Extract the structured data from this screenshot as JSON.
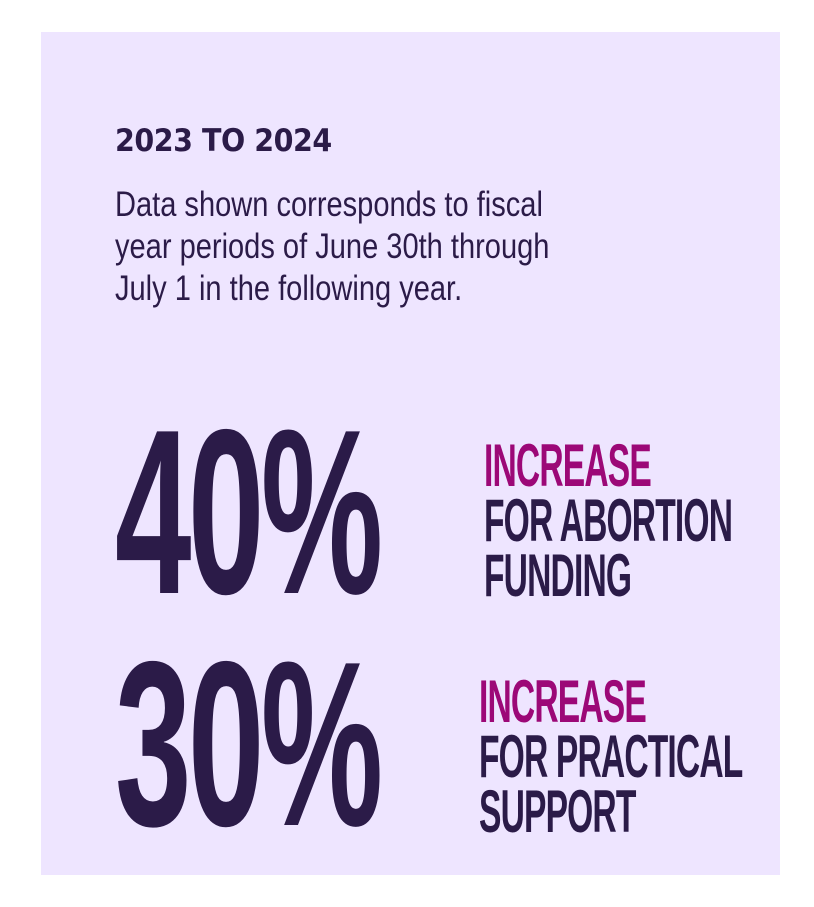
{
  "colors": {
    "page_background": "#FFFFFF",
    "card_background": "#EEE5FF",
    "text_dark": "#2B1B48",
    "accent_magenta": "#9C0877"
  },
  "header": {
    "period": "2023 TO 2024"
  },
  "description": {
    "lines": [
      "Data shown corresponds to fiscal",
      "year periods of June 30th through",
      "July 1 in the following year."
    ]
  },
  "stats": [
    {
      "value": "40%",
      "accent_label": "INCREASE",
      "label_lines": [
        "FOR ABORTION",
        "FUNDING"
      ]
    },
    {
      "value": "30%",
      "accent_label": "INCREASE",
      "label_lines": [
        "FOR PRACTICAL",
        "SUPPORT"
      ]
    }
  ]
}
